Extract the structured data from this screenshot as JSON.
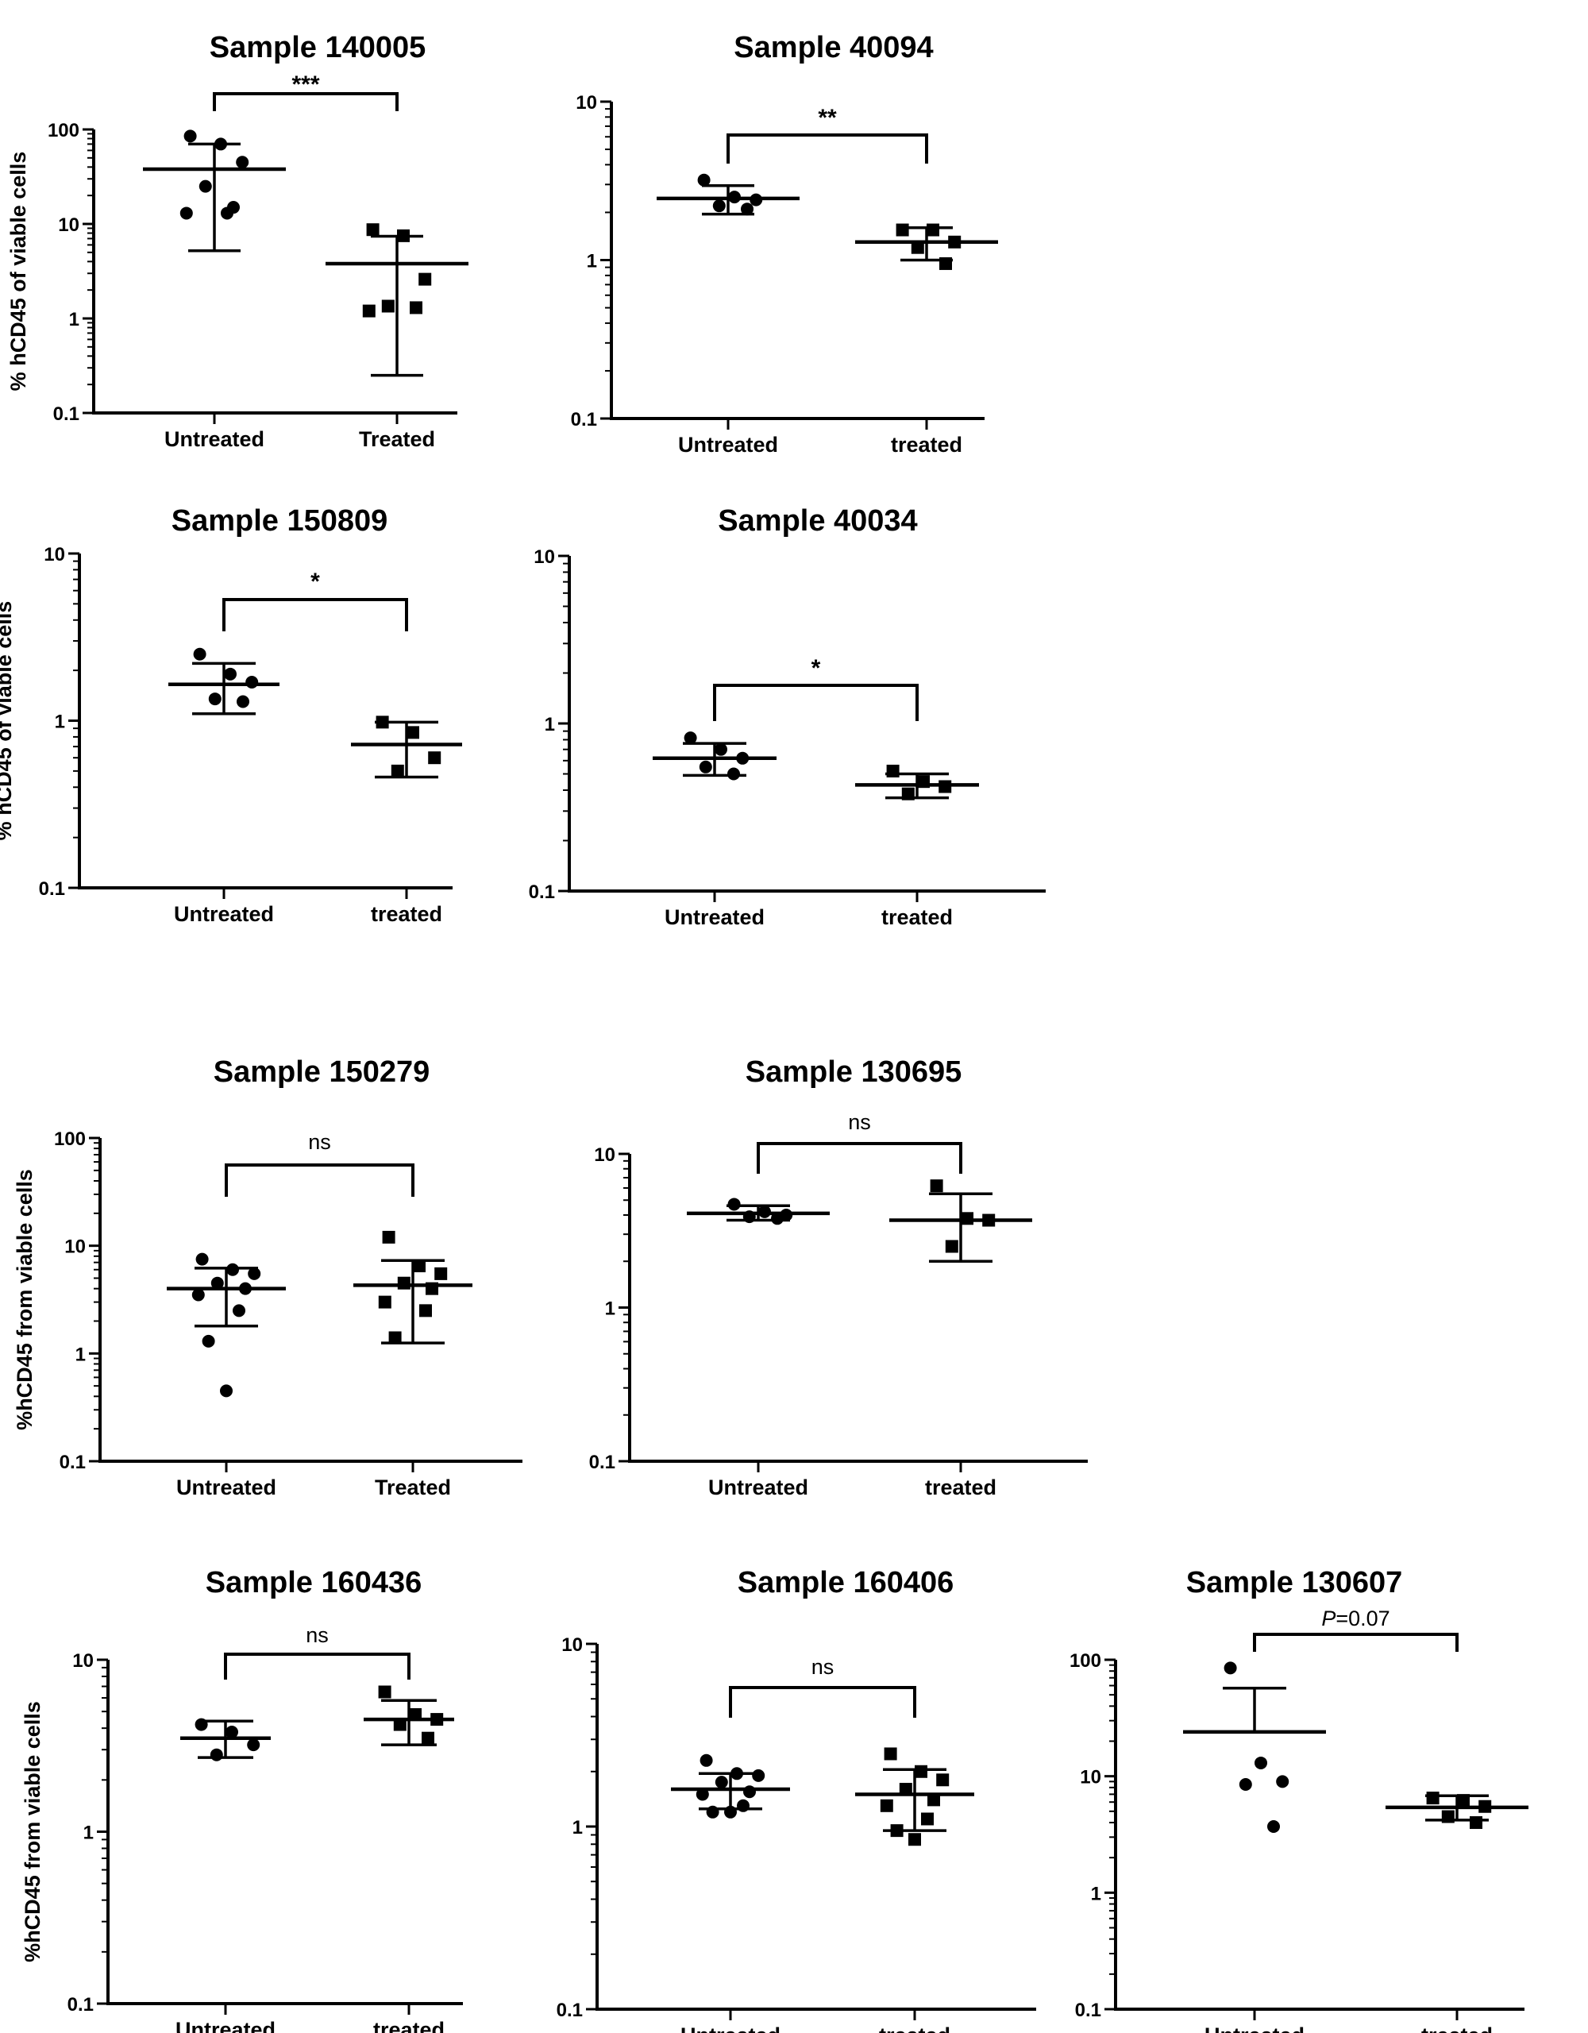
{
  "figure": {
    "description_label": "Scatter plots of %hCD45 of viable cells, untreated vs treated"
  },
  "chart_data": [
    {
      "id": "p1",
      "type": "scatter",
      "title": "Sample 140005",
      "ylabel": "% hCD45  of viable cells",
      "yscale": "log",
      "ylim": [
        0.1,
        100
      ],
      "yticks": [
        "0.1",
        "1",
        "10",
        "100"
      ],
      "categories": [
        "Untreated",
        "Treated"
      ],
      "series": [
        {
          "name": "Untreated",
          "marker": "circle",
          "values": [
            85,
            70,
            45,
            25,
            15,
            13,
            13
          ],
          "mean": 38,
          "error": [
            5.2,
            70
          ]
        },
        {
          "name": "Treated",
          "marker": "square",
          "values": [
            8.7,
            7.5,
            2.6,
            1.35,
            1.3,
            1.2
          ],
          "mean": 3.8,
          "error": [
            0.25,
            7.4
          ]
        }
      ],
      "significance": "***"
    },
    {
      "id": "p2",
      "type": "scatter",
      "title": "Sample 40094",
      "ylabel": "",
      "yscale": "log",
      "ylim": [
        0.1,
        10
      ],
      "yticks": [
        "0.1",
        "1",
        "10"
      ],
      "categories": [
        "Untreated",
        "treated"
      ],
      "series": [
        {
          "name": "Untreated",
          "marker": "circle",
          "values": [
            3.2,
            2.5,
            2.4,
            2.2,
            2.1
          ],
          "mean": 2.45,
          "error": [
            1.95,
            2.95
          ]
        },
        {
          "name": "treated",
          "marker": "square",
          "values": [
            1.55,
            1.55,
            1.3,
            1.2,
            0.95
          ],
          "mean": 1.3,
          "error": [
            1.0,
            1.6
          ]
        }
      ],
      "significance": "**"
    },
    {
      "id": "p3",
      "type": "scatter",
      "title": "Sample 150809",
      "ylabel": "% hCD45  of viable cells",
      "yscale": "log",
      "ylim": [
        0.1,
        10
      ],
      "yticks": [
        "0.1",
        "1",
        "10"
      ],
      "categories": [
        "Untreated",
        "treated"
      ],
      "series": [
        {
          "name": "Untreated",
          "marker": "circle",
          "values": [
            2.5,
            1.9,
            1.7,
            1.35,
            1.3
          ],
          "mean": 1.65,
          "error": [
            1.1,
            2.2
          ]
        },
        {
          "name": "treated",
          "marker": "square",
          "values": [
            0.98,
            0.85,
            0.6,
            0.5
          ],
          "mean": 0.72,
          "error": [
            0.46,
            0.98
          ]
        }
      ],
      "significance": "*"
    },
    {
      "id": "p4",
      "type": "scatter",
      "title": "Sample 40034",
      "ylabel": "",
      "yscale": "log",
      "ylim": [
        0.1,
        10
      ],
      "yticks": [
        "0.1",
        "1",
        "10"
      ],
      "categories": [
        "Untreated",
        "treated"
      ],
      "series": [
        {
          "name": "Untreated",
          "marker": "circle",
          "values": [
            0.82,
            0.7,
            0.62,
            0.55,
            0.5
          ],
          "mean": 0.62,
          "error": [
            0.49,
            0.76
          ]
        },
        {
          "name": "treated",
          "marker": "square",
          "values": [
            0.52,
            0.45,
            0.42,
            0.38
          ],
          "mean": 0.43,
          "error": [
            0.36,
            0.5
          ]
        }
      ],
      "significance": "*"
    },
    {
      "id": "p5",
      "type": "scatter",
      "title": "Sample 150279",
      "ylabel": "%hCD45 from viable cells",
      "yscale": "log",
      "ylim": [
        0.1,
        100
      ],
      "yticks": [
        "0.1",
        "1",
        "10",
        "100"
      ],
      "categories": [
        "Untreated",
        "Treated"
      ],
      "series": [
        {
          "name": "Untreated",
          "marker": "circle",
          "values": [
            7.5,
            6.0,
            5.5,
            4.5,
            4.0,
            3.5,
            2.5,
            1.3,
            0.45
          ],
          "mean": 4.0,
          "error": [
            1.8,
            6.2
          ]
        },
        {
          "name": "Treated",
          "marker": "square",
          "values": [
            12,
            6.5,
            5.5,
            4.5,
            4.0,
            3.0,
            2.5,
            1.4
          ],
          "mean": 4.3,
          "error": [
            1.25,
            7.3
          ]
        }
      ],
      "significance": "ns"
    },
    {
      "id": "p6",
      "type": "scatter",
      "title": "Sample 130695",
      "ylabel": "",
      "yscale": "log",
      "ylim": [
        0.1,
        10
      ],
      "yticks": [
        "0.1",
        "1",
        "10"
      ],
      "categories": [
        "Untreated",
        "treated"
      ],
      "series": [
        {
          "name": "Untreated",
          "marker": "circle",
          "values": [
            4.7,
            4.2,
            4.0,
            3.9,
            3.8
          ],
          "mean": 4.1,
          "error": [
            3.7,
            4.6
          ]
        },
        {
          "name": "treated",
          "marker": "square",
          "values": [
            6.2,
            3.8,
            3.7,
            2.5
          ],
          "mean": 3.7,
          "error": [
            2.0,
            5.5
          ]
        }
      ],
      "significance": "ns"
    },
    {
      "id": "p7",
      "type": "scatter",
      "title": "Sample 160436",
      "ylabel": "%hCD45 from viable cells",
      "yscale": "log",
      "ylim": [
        0.1,
        10
      ],
      "yticks": [
        "0.1",
        "1",
        "10"
      ],
      "categories": [
        "Untreated",
        "treated"
      ],
      "series": [
        {
          "name": "Untreated",
          "marker": "circle",
          "values": [
            4.2,
            3.8,
            3.2,
            2.8
          ],
          "mean": 3.5,
          "error": [
            2.7,
            4.4
          ]
        },
        {
          "name": "treated",
          "marker": "square",
          "values": [
            6.5,
            4.8,
            4.5,
            4.2,
            3.5
          ],
          "mean": 4.5,
          "error": [
            3.2,
            5.8
          ]
        }
      ],
      "significance": "ns"
    },
    {
      "id": "p8",
      "type": "scatter",
      "title": "Sample 160406",
      "ylabel": "",
      "yscale": "log",
      "ylim": [
        0.1,
        10
      ],
      "yticks": [
        "0.1",
        "1",
        "10"
      ],
      "categories": [
        "Untreated",
        "treated"
      ],
      "series": [
        {
          "name": "Untreated",
          "marker": "circle",
          "values": [
            2.3,
            1.95,
            1.9,
            1.75,
            1.55,
            1.5,
            1.3,
            1.2,
            1.2
          ],
          "mean": 1.6,
          "error": [
            1.25,
            1.95
          ]
        },
        {
          "name": "treated",
          "marker": "square",
          "values": [
            2.5,
            2.0,
            1.8,
            1.6,
            1.4,
            1.3,
            1.1,
            0.95,
            0.85
          ],
          "mean": 1.5,
          "error": [
            0.95,
            2.05
          ]
        }
      ],
      "significance": "ns"
    },
    {
      "id": "p9",
      "type": "scatter",
      "title": "Sample 130607",
      "ylabel": "",
      "yscale": "log",
      "ylim": [
        0.1,
        100
      ],
      "yticks": [
        "0.1",
        "1",
        "10",
        "100"
      ],
      "categories": [
        "Untreated",
        "treated"
      ],
      "series": [
        {
          "name": "Untreated",
          "marker": "circle",
          "values": [
            85,
            13,
            9,
            8.5,
            3.7
          ],
          "mean": 24,
          "error": [
            null,
            57
          ]
        },
        {
          "name": "treated",
          "marker": "square",
          "values": [
            6.5,
            6.2,
            5.5,
            4.5,
            4.0
          ],
          "mean": 5.4,
          "error": [
            4.2,
            6.8
          ]
        }
      ],
      "significance": "P=0.07",
      "significance_parts": {
        "italic": "P",
        "rest": "=0.07"
      }
    }
  ]
}
